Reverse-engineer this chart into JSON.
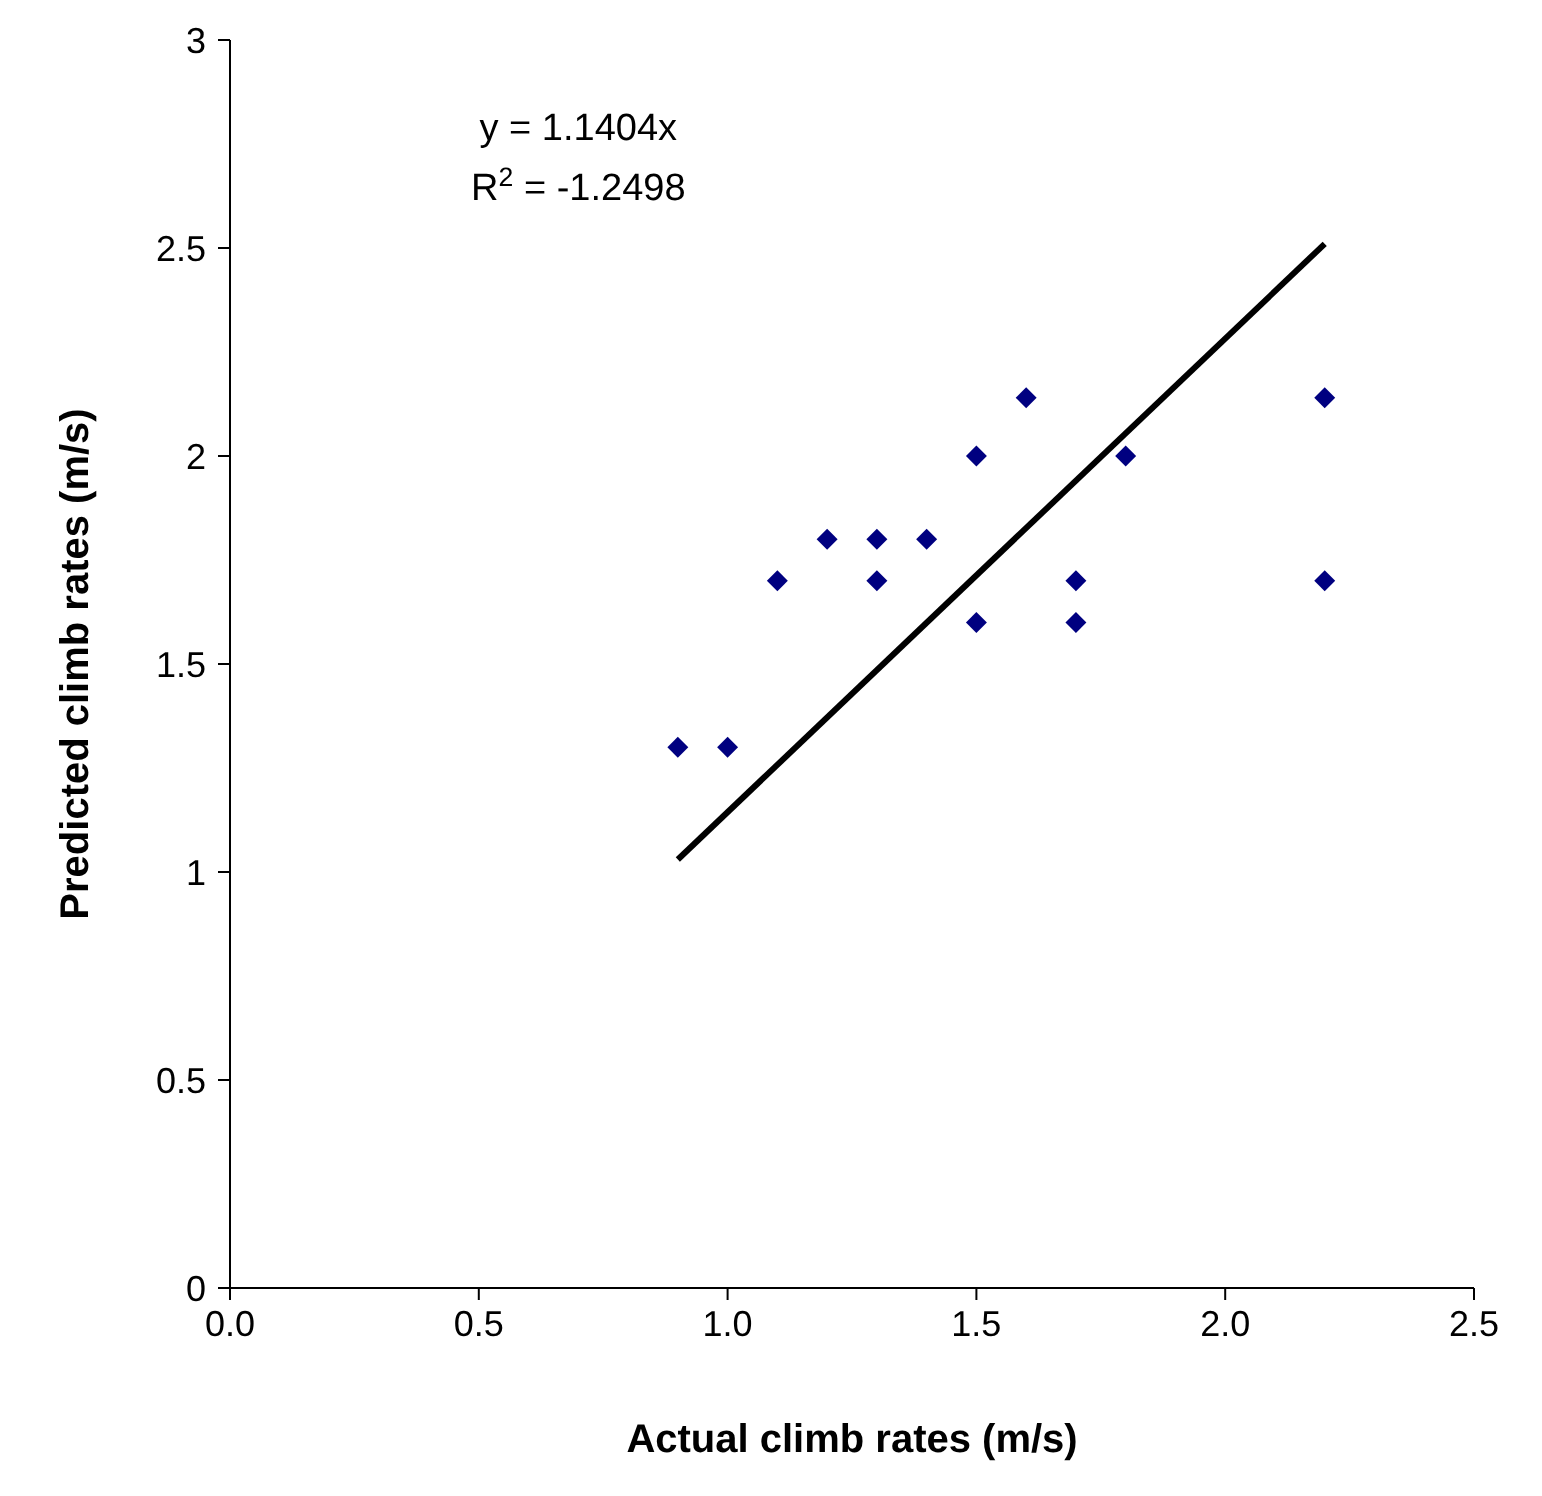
{
  "chart_data": {
    "type": "scatter",
    "xlabel": "Actual climb rates (m/s)",
    "ylabel": "Predicted climb rates (m/s)",
    "xlim": [
      0,
      2.5
    ],
    "xticks": [
      {
        "value": 0,
        "label": "0.0"
      },
      {
        "value": 0.5,
        "label": "0.5"
      },
      {
        "value": 1,
        "label": "1.0"
      },
      {
        "value": 1.5,
        "label": "1.5"
      },
      {
        "value": 2,
        "label": "2.0"
      },
      {
        "value": 2.5,
        "label": "2.5"
      }
    ],
    "ylim": [
      0,
      3
    ],
    "yticks": [
      0,
      0.5,
      1,
      1.5,
      2,
      2.5,
      3
    ],
    "grid": false,
    "annotations": [
      "y = 1.1404x",
      "R$^{2}$ = -1.2498"
    ],
    "series": [
      {
        "color": "#000080",
        "marker": "diamond",
        "x": [
          0.9,
          1.0,
          1.1,
          1.2,
          1.3,
          1.3,
          1.4,
          1.5,
          1.5,
          1.6,
          1.7,
          1.7,
          1.8,
          2.2,
          2.2
        ],
        "values": [
          1.3,
          1.3,
          1.7,
          1.8,
          1.8,
          1.7,
          1.8,
          2.0,
          1.6,
          2.14,
          1.7,
          1.6,
          2.0,
          2.14,
          1.7
        ]
      },
      {
        "type": "line",
        "color": "#000000",
        "line_style": "solid",
        "marker": "none",
        "x": [
          0.9,
          2.2
        ],
        "values": [
          1.03,
          2.51
        ]
      }
    ]
  }
}
